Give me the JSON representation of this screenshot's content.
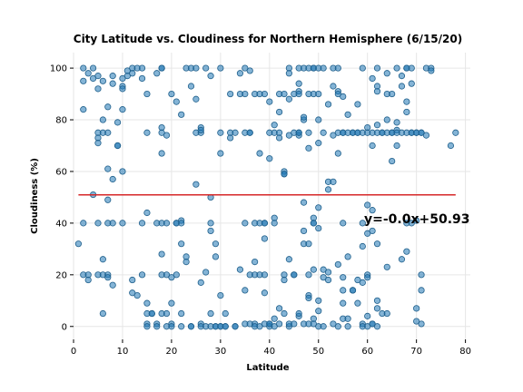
{
  "chart_data": {
    "type": "scatter",
    "title": "City Latitude vs. Cloudiness for Northern Hemisphere (6/15/20)",
    "xlabel": "Latitude",
    "ylabel": "Cloudiness (%)",
    "xlim": [
      0,
      81
    ],
    "ylim": [
      -5,
      106
    ],
    "xticks": [
      0,
      10,
      20,
      30,
      40,
      50,
      60,
      70,
      80
    ],
    "yticks": [
      0,
      20,
      40,
      60,
      80,
      100
    ],
    "grid": true,
    "colors": {
      "points": "#1f77b4",
      "fit_line": "#d62728"
    },
    "regression": {
      "slope": -0.0,
      "intercept": 50.93,
      "equation": "y=-0.0x+50.93",
      "x_range": [
        1,
        78
      ]
    },
    "points": [
      [
        1,
        32
      ],
      [
        2,
        20
      ],
      [
        2,
        40
      ],
      [
        2,
        100
      ],
      [
        2,
        95
      ],
      [
        2,
        84
      ],
      [
        3,
        98
      ],
      [
        3,
        20
      ],
      [
        3,
        18
      ],
      [
        4,
        51
      ],
      [
        4,
        100
      ],
      [
        4,
        96
      ],
      [
        5,
        97
      ],
      [
        5,
        92
      ],
      [
        5,
        75
      ],
      [
        5,
        73
      ],
      [
        5,
        71
      ],
      [
        5,
        40
      ],
      [
        5,
        20
      ],
      [
        6,
        95
      ],
      [
        6,
        80
      ],
      [
        6,
        75
      ],
      [
        6,
        26
      ],
      [
        6,
        20
      ],
      [
        6,
        5
      ],
      [
        7,
        85
      ],
      [
        7,
        75
      ],
      [
        7,
        61
      ],
      [
        7,
        49
      ],
      [
        7,
        20
      ],
      [
        7,
        19
      ],
      [
        7,
        40
      ],
      [
        8,
        97
      ],
      [
        8,
        94
      ],
      [
        8,
        57
      ],
      [
        8,
        40
      ],
      [
        8,
        16
      ],
      [
        9,
        79
      ],
      [
        9,
        70
      ],
      [
        9,
        70
      ],
      [
        10,
        96
      ],
      [
        10,
        93
      ],
      [
        10,
        92
      ],
      [
        10,
        60
      ],
      [
        10,
        40
      ],
      [
        10,
        84
      ],
      [
        11,
        97
      ],
      [
        11,
        99
      ],
      [
        12,
        100
      ],
      [
        12,
        98
      ],
      [
        12,
        18
      ],
      [
        12,
        13
      ],
      [
        13,
        100
      ],
      [
        13,
        12
      ],
      [
        14,
        40
      ],
      [
        14,
        100
      ],
      [
        14,
        96
      ],
      [
        14,
        20
      ],
      [
        15,
        75
      ],
      [
        15,
        90
      ],
      [
        15,
        44
      ],
      [
        15,
        9
      ],
      [
        15,
        5
      ],
      [
        15,
        1
      ],
      [
        15,
        0
      ],
      [
        16,
        5
      ],
      [
        16,
        5
      ],
      [
        17,
        98
      ],
      [
        17,
        40
      ],
      [
        17,
        1
      ],
      [
        17,
        0
      ],
      [
        18,
        100
      ],
      [
        18,
        100
      ],
      [
        18,
        77
      ],
      [
        18,
        75
      ],
      [
        18,
        67
      ],
      [
        18,
        40
      ],
      [
        18,
        28
      ],
      [
        18,
        20
      ],
      [
        18,
        5
      ],
      [
        19,
        74
      ],
      [
        19,
        40
      ],
      [
        19,
        0
      ],
      [
        19,
        5
      ],
      [
        19,
        20
      ],
      [
        20,
        90
      ],
      [
        20,
        19
      ],
      [
        20,
        9
      ],
      [
        20,
        1
      ],
      [
        20,
        0
      ],
      [
        21,
        87
      ],
      [
        21,
        40
      ],
      [
        21,
        40
      ],
      [
        21,
        20
      ],
      [
        22,
        41
      ],
      [
        22,
        40
      ],
      [
        22,
        82
      ],
      [
        22,
        0
      ],
      [
        22,
        5
      ],
      [
        22,
        32
      ],
      [
        23,
        100
      ],
      [
        23,
        27
      ],
      [
        23,
        25
      ],
      [
        24,
        100
      ],
      [
        24,
        93
      ],
      [
        24,
        0
      ],
      [
        24,
        0
      ],
      [
        25,
        100
      ],
      [
        25,
        88
      ],
      [
        25,
        75
      ],
      [
        25,
        55
      ],
      [
        26,
        75
      ],
      [
        26,
        77
      ],
      [
        26,
        76
      ],
      [
        26,
        17
      ],
      [
        26,
        1
      ],
      [
        26,
        0
      ],
      [
        27,
        21
      ],
      [
        27,
        100
      ],
      [
        27,
        0
      ],
      [
        28,
        97
      ],
      [
        28,
        50
      ],
      [
        28,
        40
      ],
      [
        28,
        37
      ],
      [
        28,
        0
      ],
      [
        28,
        5
      ],
      [
        29,
        32
      ],
      [
        29,
        27
      ],
      [
        29,
        0
      ],
      [
        29,
        0
      ],
      [
        30,
        100
      ],
      [
        30,
        75
      ],
      [
        30,
        67
      ],
      [
        30,
        12
      ],
      [
        30,
        0
      ],
      [
        30,
        0
      ],
      [
        31,
        5
      ],
      [
        31,
        0
      ],
      [
        31,
        0
      ],
      [
        32,
        90
      ],
      [
        32,
        75
      ],
      [
        32,
        73
      ],
      [
        33,
        75
      ],
      [
        33,
        0
      ],
      [
        33,
        0
      ],
      [
        34,
        98
      ],
      [
        34,
        90
      ],
      [
        34,
        22
      ],
      [
        35,
        100
      ],
      [
        35,
        90
      ],
      [
        35,
        75
      ],
      [
        35,
        40
      ],
      [
        35,
        14
      ],
      [
        35,
        1
      ],
      [
        36,
        99
      ],
      [
        36,
        75
      ],
      [
        36,
        75
      ],
      [
        36,
        20
      ],
      [
        36,
        1
      ],
      [
        37,
        90
      ],
      [
        37,
        40
      ],
      [
        37,
        25
      ],
      [
        37,
        20
      ],
      [
        37,
        1
      ],
      [
        37,
        0
      ],
      [
        38,
        90
      ],
      [
        38,
        67
      ],
      [
        38,
        40
      ],
      [
        38,
        20
      ],
      [
        38,
        0
      ],
      [
        39,
        90
      ],
      [
        39,
        34
      ],
      [
        39,
        40
      ],
      [
        39,
        40
      ],
      [
        39,
        20
      ],
      [
        39,
        13
      ],
      [
        39,
        1
      ],
      [
        40,
        87
      ],
      [
        40,
        75
      ],
      [
        40,
        65
      ],
      [
        40,
        1
      ],
      [
        40,
        0
      ],
      [
        40,
        1
      ],
      [
        41,
        78
      ],
      [
        41,
        75
      ],
      [
        41,
        42
      ],
      [
        41,
        40
      ],
      [
        41,
        3
      ],
      [
        41,
        0
      ],
      [
        42,
        90
      ],
      [
        42,
        75
      ],
      [
        42,
        83
      ],
      [
        42,
        73
      ],
      [
        42,
        7
      ],
      [
        42,
        1
      ],
      [
        43,
        60
      ],
      [
        43,
        59
      ],
      [
        43,
        59
      ],
      [
        43,
        90
      ],
      [
        43,
        20
      ],
      [
        43,
        5
      ],
      [
        43,
        18
      ],
      [
        44,
        100
      ],
      [
        44,
        98
      ],
      [
        44,
        88
      ],
      [
        44,
        74
      ],
      [
        44,
        26
      ],
      [
        44,
        0
      ],
      [
        44,
        1
      ],
      [
        45,
        90
      ],
      [
        45,
        75
      ],
      [
        45,
        20
      ],
      [
        45,
        20
      ],
      [
        45,
        1
      ],
      [
        46,
        100
      ],
      [
        46,
        94
      ],
      [
        46,
        91
      ],
      [
        46,
        90
      ],
      [
        46,
        75
      ],
      [
        46,
        74
      ],
      [
        46,
        75
      ],
      [
        46,
        4
      ],
      [
        46,
        5
      ],
      [
        47,
        100
      ],
      [
        47,
        80
      ],
      [
        47,
        81
      ],
      [
        47,
        48
      ],
      [
        47,
        37
      ],
      [
        47,
        32
      ],
      [
        47,
        1
      ],
      [
        48,
        100
      ],
      [
        48,
        90
      ],
      [
        48,
        75
      ],
      [
        48,
        69
      ],
      [
        48,
        32
      ],
      [
        48,
        12
      ],
      [
        48,
        11
      ],
      [
        48,
        1
      ],
      [
        48,
        20
      ],
      [
        49,
        100
      ],
      [
        49,
        100
      ],
      [
        49,
        90
      ],
      [
        49,
        40
      ],
      [
        49,
        42
      ],
      [
        49,
        40
      ],
      [
        49,
        22
      ],
      [
        49,
        3
      ],
      [
        49,
        1
      ],
      [
        50,
        100
      ],
      [
        50,
        80
      ],
      [
        50,
        90
      ],
      [
        50,
        71
      ],
      [
        50,
        46
      ],
      [
        50,
        38
      ],
      [
        50,
        10
      ],
      [
        50,
        6
      ],
      [
        50,
        0
      ],
      [
        51,
        100
      ],
      [
        51,
        75
      ],
      [
        51,
        22
      ],
      [
        51,
        19
      ],
      [
        51,
        0
      ],
      [
        52,
        86
      ],
      [
        52,
        56
      ],
      [
        52,
        53
      ],
      [
        52,
        21
      ],
      [
        52,
        18
      ],
      [
        53,
        93
      ],
      [
        53,
        74
      ],
      [
        53,
        56
      ],
      [
        53,
        100
      ],
      [
        53,
        1
      ],
      [
        54,
        91
      ],
      [
        54,
        90
      ],
      [
        54,
        100
      ],
      [
        54,
        75
      ],
      [
        54,
        67
      ],
      [
        54,
        24
      ],
      [
        54,
        0
      ],
      [
        55,
        75
      ],
      [
        55,
        89
      ],
      [
        55,
        75
      ],
      [
        55,
        14
      ],
      [
        55,
        19
      ],
      [
        55,
        40
      ],
      [
        55,
        9
      ],
      [
        55,
        3
      ],
      [
        56,
        82
      ],
      [
        56,
        75
      ],
      [
        56,
        3
      ],
      [
        56,
        27
      ],
      [
        56,
        0
      ],
      [
        57,
        75
      ],
      [
        57,
        75
      ],
      [
        57,
        14
      ],
      [
        57,
        14
      ],
      [
        58,
        75
      ],
      [
        58,
        75
      ],
      [
        58,
        86
      ],
      [
        58,
        18
      ],
      [
        58,
        9
      ],
      [
        59,
        75
      ],
      [
        59,
        100
      ],
      [
        59,
        40
      ],
      [
        59,
        31
      ],
      [
        59,
        1
      ],
      [
        59,
        17
      ],
      [
        59,
        0
      ],
      [
        60,
        77
      ],
      [
        60,
        75
      ],
      [
        60,
        47
      ],
      [
        60,
        36
      ],
      [
        60,
        20
      ],
      [
        60,
        19
      ],
      [
        60,
        4
      ],
      [
        60,
        0
      ],
      [
        61,
        96
      ],
      [
        61,
        75
      ],
      [
        61,
        70
      ],
      [
        61,
        45
      ],
      [
        61,
        37
      ],
      [
        61,
        1
      ],
      [
        61,
        1
      ],
      [
        62,
        100
      ],
      [
        62,
        93
      ],
      [
        62,
        91
      ],
      [
        62,
        78
      ],
      [
        62,
        75
      ],
      [
        62,
        32
      ],
      [
        62,
        10
      ],
      [
        62,
        7
      ],
      [
        62,
        0
      ],
      [
        63,
        75
      ],
      [
        63,
        75
      ],
      [
        63,
        5
      ],
      [
        64,
        98
      ],
      [
        64,
        90
      ],
      [
        64,
        80
      ],
      [
        64,
        75
      ],
      [
        64,
        23
      ],
      [
        64,
        5
      ],
      [
        65,
        90
      ],
      [
        65,
        75
      ],
      [
        65,
        64
      ],
      [
        65,
        75
      ],
      [
        66,
        76
      ],
      [
        66,
        100
      ],
      [
        66,
        79
      ],
      [
        66,
        75
      ],
      [
        66,
        70
      ],
      [
        67,
        97
      ],
      [
        67,
        93
      ],
      [
        67,
        75
      ],
      [
        67,
        26
      ],
      [
        68,
        100
      ],
      [
        68,
        100
      ],
      [
        68,
        87
      ],
      [
        68,
        83
      ],
      [
        68,
        75
      ],
      [
        68,
        29
      ],
      [
        68,
        40
      ],
      [
        69,
        94
      ],
      [
        69,
        75
      ],
      [
        69,
        75
      ],
      [
        69,
        100
      ],
      [
        69,
        40
      ],
      [
        70,
        75
      ],
      [
        70,
        75
      ],
      [
        70,
        41
      ],
      [
        70,
        7
      ],
      [
        70,
        2
      ],
      [
        71,
        75
      ],
      [
        71,
        75
      ],
      [
        71,
        20
      ],
      [
        71,
        14
      ],
      [
        71,
        1
      ],
      [
        72,
        100
      ],
      [
        72,
        74
      ],
      [
        73,
        100
      ],
      [
        73,
        99
      ],
      [
        77,
        70
      ],
      [
        78,
        75
      ]
    ]
  }
}
